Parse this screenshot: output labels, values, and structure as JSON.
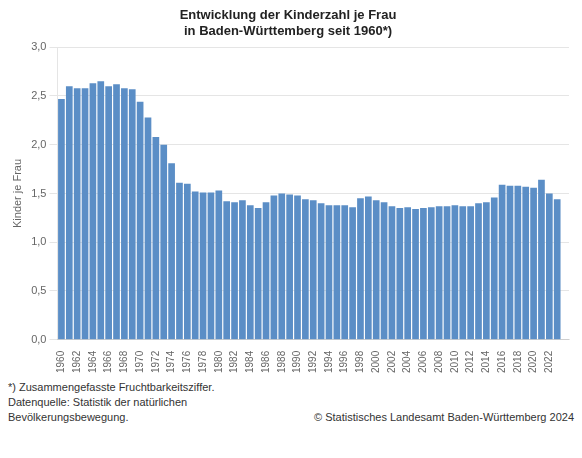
{
  "chart_data": {
    "type": "bar",
    "title": "Entwicklung der Kinderzahl je Frau",
    "subtitle": "in Baden-Württemberg seit 1960*)",
    "y_label": "Kinder je Frau",
    "annotations": [
      "*) Zusammengefasste Fruchtbarkeitsziffer.",
      "Datenquelle: Statistik der natürlichen",
      "Bevölkerungsbewegung.",
      "© Statistisches Landesamt Baden-Württemberg 2024"
    ],
    "color": "#5b8ec6",
    "x": [
      1960,
      1961,
      1962,
      1963,
      1964,
      1965,
      1966,
      1967,
      1968,
      1969,
      1970,
      1971,
      1972,
      1973,
      1974,
      1975,
      1976,
      1977,
      1978,
      1979,
      1980,
      1981,
      1982,
      1983,
      1984,
      1985,
      1986,
      1987,
      1988,
      1989,
      1990,
      1991,
      1992,
      1993,
      1994,
      1995,
      1996,
      1997,
      1998,
      1999,
      2000,
      2001,
      2002,
      2003,
      2004,
      2005,
      2006,
      2007,
      2008,
      2009,
      2010,
      2011,
      2012,
      2013,
      2014,
      2015,
      2016,
      2017,
      2018,
      2019,
      2020,
      2021,
      2022,
      2023
    ],
    "values": [
      2.47,
      2.6,
      2.58,
      2.58,
      2.63,
      2.65,
      2.6,
      2.62,
      2.58,
      2.57,
      2.44,
      2.28,
      2.08,
      2.0,
      1.81,
      1.61,
      1.6,
      1.52,
      1.51,
      1.51,
      1.53,
      1.42,
      1.41,
      1.43,
      1.38,
      1.35,
      1.41,
      1.48,
      1.5,
      1.49,
      1.48,
      1.44,
      1.43,
      1.4,
      1.38,
      1.38,
      1.38,
      1.36,
      1.45,
      1.47,
      1.43,
      1.41,
      1.37,
      1.35,
      1.36,
      1.34,
      1.35,
      1.36,
      1.37,
      1.37,
      1.38,
      1.37,
      1.37,
      1.4,
      1.41,
      1.46,
      1.59,
      1.58,
      1.58,
      1.57,
      1.56,
      1.64,
      1.5,
      1.44
    ],
    "xlim": [
      1959.5,
      2024.5
    ],
    "xticks": [
      1960,
      1962,
      1964,
      1966,
      1968,
      1970,
      1972,
      1974,
      1976,
      1978,
      1980,
      1982,
      1984,
      1986,
      1988,
      1990,
      1992,
      1994,
      1996,
      1998,
      2000,
      2002,
      2004,
      2006,
      2008,
      2010,
      2012,
      2014,
      2016,
      2018,
      2020,
      2022
    ],
    "ylim": [
      0,
      3.0
    ],
    "yticks": [
      {
        "value": 0.0,
        "label": "0,0"
      },
      {
        "value": 0.5,
        "label": "0,5"
      },
      {
        "value": 1.0,
        "label": "1,0"
      },
      {
        "value": 1.5,
        "label": "1,5"
      },
      {
        "value": 2.0,
        "label": "2,0"
      },
      {
        "value": 2.5,
        "label": "2,5"
      },
      {
        "value": 3.0,
        "label": "3,0"
      }
    ],
    "grid": true
  }
}
